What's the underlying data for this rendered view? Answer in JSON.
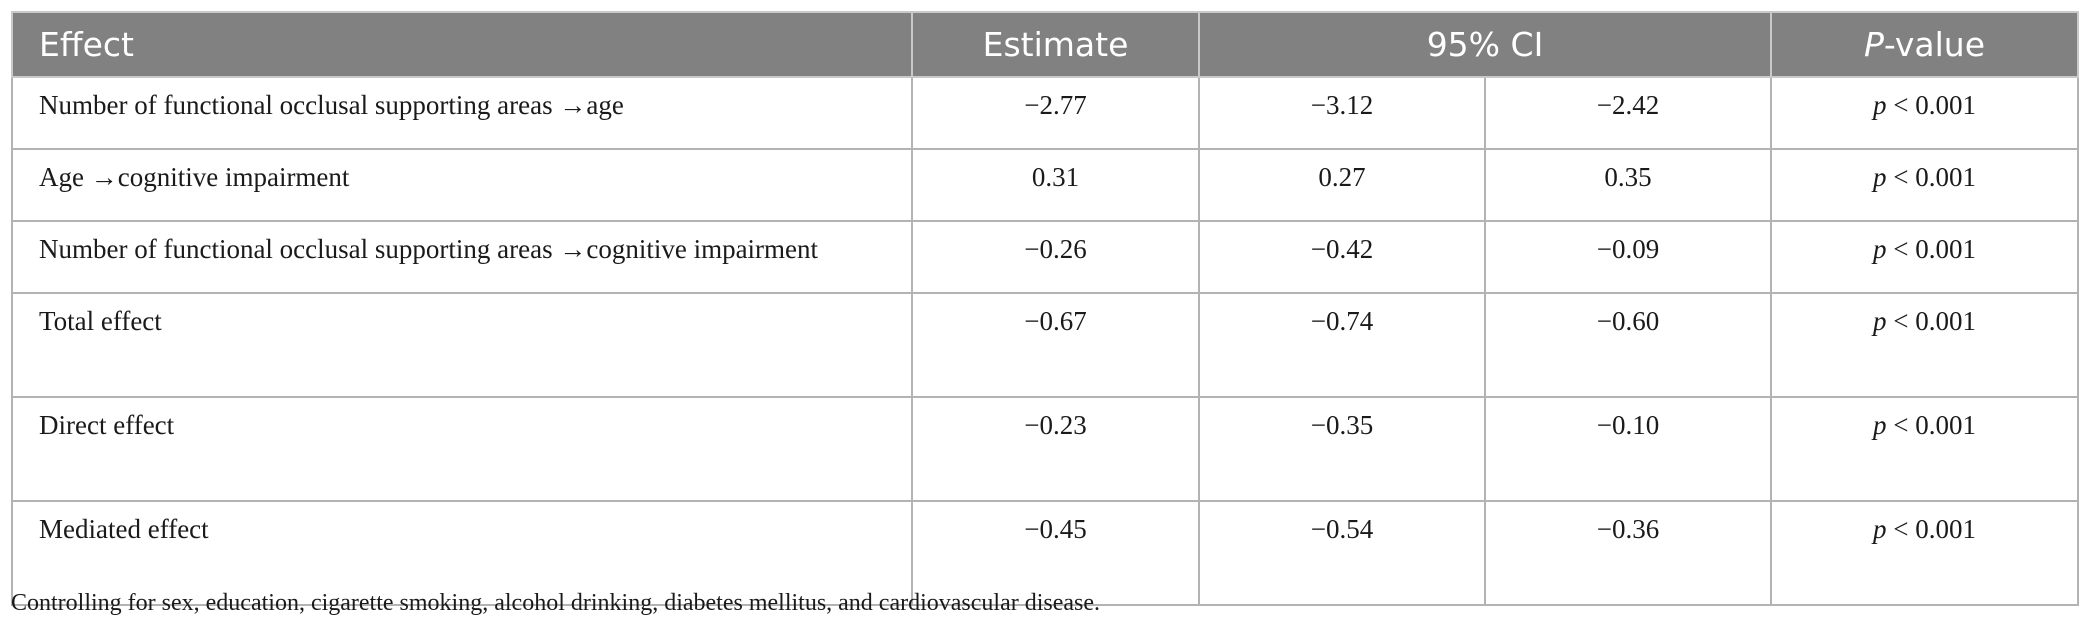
{
  "table": {
    "headers": {
      "effect": "Effect",
      "estimate": "Estimate",
      "ci": "95% CI",
      "pvalue_letter": "P",
      "pvalue_suffix": "-value"
    },
    "rows": [
      {
        "effect": "Number of functional occlusal supporting areas →age",
        "estimate": "−2.77",
        "ci_low": "−3.12",
        "ci_high": "−2.42",
        "p_letter": "p",
        "p_rest": " < 0.001"
      },
      {
        "effect": "Age →cognitive impairment",
        "estimate": "0.31",
        "ci_low": "0.27",
        "ci_high": "0.35",
        "p_letter": "p",
        "p_rest": " < 0.001"
      },
      {
        "effect": "Number of functional occlusal supporting areas →cognitive impairment",
        "estimate": "−0.26",
        "ci_low": "−0.42",
        "ci_high": "−0.09",
        "p_letter": "p",
        "p_rest": " < 0.001"
      },
      {
        "effect": "Total effect",
        "estimate": "−0.67",
        "ci_low": "−0.74",
        "ci_high": "−0.60",
        "p_letter": "p",
        "p_rest": " < 0.001"
      },
      {
        "effect": "Direct effect",
        "estimate": "−0.23",
        "ci_low": "−0.35",
        "ci_high": "−0.10",
        "p_letter": "p",
        "p_rest": " < 0.001"
      },
      {
        "effect": "Mediated effect",
        "estimate": "−0.45",
        "ci_low": "−0.54",
        "ci_high": "−0.36",
        "p_letter": "p",
        "p_rest": " < 0.001"
      }
    ]
  },
  "footnote": "Controlling for sex, education, cigarette smoking, alcohol drinking, diabetes mellitus, and cardiovascular disease."
}
